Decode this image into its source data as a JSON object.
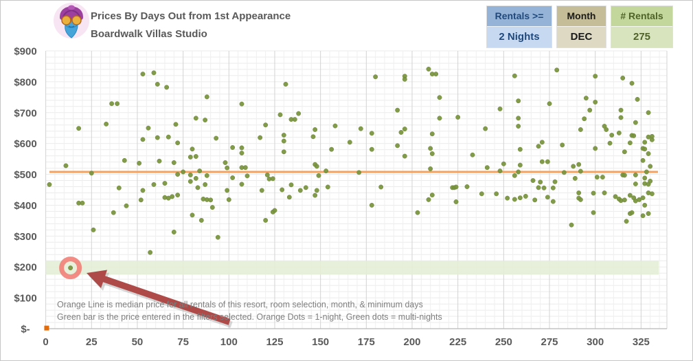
{
  "header": {
    "title_line1": "Prices By Days Out from 1st Appearance",
    "title_line2": "Boardwalk Villas Studio",
    "logo": "genie-avatar-icon"
  },
  "filters": [
    {
      "label": "Rentals >=",
      "value": "2 Nights",
      "header_bg": "#95b3d7",
      "value_bg": "#c6d9f1",
      "text_color": "#1f497d"
    },
    {
      "label": "Month",
      "value": "DEC",
      "header_bg": "#c4bd97",
      "value_bg": "#ddd9c3",
      "text_color": "#1a1a1a"
    },
    {
      "label": "# Rentals",
      "value": "275",
      "header_bg": "#c3d69b",
      "value_bg": "#d7e4bd",
      "text_color": "#4f6228"
    }
  ],
  "chart_data": {
    "type": "scatter",
    "title": "Prices By Days Out from 1st Appearance",
    "subtitle": "Boardwalk Villas Studio",
    "xlabel": "",
    "ylabel": "",
    "xlim": [
      0,
      340
    ],
    "ylim": [
      0,
      900
    ],
    "grid": "on",
    "x_ticks": [
      0,
      25,
      50,
      75,
      100,
      125,
      150,
      175,
      200,
      225,
      250,
      275,
      300,
      325
    ],
    "y_ticks": [
      {
        "label": "$-",
        "value": 0
      },
      {
        "label": "$100",
        "value": 100
      },
      {
        "label": "$200",
        "value": 200
      },
      {
        "label": "$300",
        "value": 300
      },
      {
        "label": "$400",
        "value": 400
      },
      {
        "label": "$500",
        "value": 500
      },
      {
        "label": "$600",
        "value": 600
      },
      {
        "label": "$700",
        "value": 700
      },
      {
        "label": "$800",
        "value": 800
      },
      {
        "label": "$900",
        "value": 900
      }
    ],
    "median_line": {
      "value": 508,
      "color": "#f5a15f",
      "meaning": "median price for all rentals of this resort, room selection, month, & minimum days"
    },
    "filter_band": {
      "from": 175,
      "to": 220,
      "color": "#e4eed6",
      "meaning": "price entered in the filters selected"
    },
    "highlight": {
      "x": 13.5,
      "y": 197,
      "ring_color": "#f2827a",
      "arrow_color": "#ae4b49"
    },
    "annotation_lines": [
      "Orange Line is median price for all rentals of this resort, room selection, month, & minimum days",
      "Green bar is the price entered in the filters selected. Orange Dots = 1-night, Green dots = multi-nights"
    ],
    "series": [
      {
        "name": "multi-night rentals",
        "marker": "circle",
        "color": "#77933c",
        "points": [
          [
            53,
            825
          ],
          [
            36,
            729
          ],
          [
            39,
            729
          ],
          [
            33,
            663
          ],
          [
            18,
            649
          ],
          [
            56,
            650
          ],
          [
            53,
            613
          ],
          [
            43,
            545
          ],
          [
            51,
            536
          ],
          [
            11,
            528
          ],
          [
            25,
            504
          ],
          [
            2,
            467
          ],
          [
            40,
            456
          ],
          [
            53,
            448
          ],
          [
            52,
            417
          ],
          [
            18,
            407
          ],
          [
            20,
            407
          ],
          [
            44,
            398
          ],
          [
            37,
            376
          ],
          [
            26,
            320
          ],
          [
            59,
            829
          ],
          [
            61,
            792
          ],
          [
            66,
            782
          ],
          [
            88,
            751
          ],
          [
            107,
            728
          ],
          [
            82,
            682
          ],
          [
            87,
            676
          ],
          [
            71,
            662
          ],
          [
            61,
            619
          ],
          [
            67,
            621
          ],
          [
            93,
            617
          ],
          [
            72,
            602
          ],
          [
            102,
            587
          ],
          [
            107,
            586
          ],
          [
            80,
            582
          ],
          [
            107,
            569
          ],
          [
            79,
            556
          ],
          [
            82,
            558
          ],
          [
            62,
            543
          ],
          [
            98,
            538
          ],
          [
            70,
            538
          ],
          [
            99,
            521
          ],
          [
            107,
            522
          ],
          [
            109,
            522
          ],
          [
            84,
            511
          ],
          [
            75,
            508
          ],
          [
            72,
            500
          ],
          [
            79,
            498
          ],
          [
            88,
            496
          ],
          [
            82,
            487
          ],
          [
            102,
            489
          ],
          [
            110,
            495
          ],
          [
            79,
            477
          ],
          [
            59,
            467
          ],
          [
            65,
            471
          ],
          [
            107,
            468
          ],
          [
            83,
            457
          ],
          [
            87,
            467
          ],
          [
            99,
            448
          ],
          [
            72,
            433
          ],
          [
            69,
            428
          ],
          [
            65,
            425
          ],
          [
            67,
            423
          ],
          [
            86,
            420
          ],
          [
            88,
            418
          ],
          [
            90,
            417
          ],
          [
            100,
            418
          ],
          [
            91,
            393
          ],
          [
            80,
            368
          ],
          [
            85,
            351
          ],
          [
            70,
            313
          ],
          [
            94,
            296
          ],
          [
            57,
            247
          ],
          [
            131,
            792
          ],
          [
            128,
            693
          ],
          [
            138,
            697
          ],
          [
            134,
            678
          ],
          [
            136,
            678
          ],
          [
            120,
            660
          ],
          [
            158,
            657
          ],
          [
            147,
            645
          ],
          [
            117,
            619
          ],
          [
            130,
            627
          ],
          [
            146,
            622
          ],
          [
            130,
            608
          ],
          [
            166,
            604
          ],
          [
            156,
            581
          ],
          [
            130,
            573
          ],
          [
            147,
            532
          ],
          [
            148,
            526
          ],
          [
            153,
            511
          ],
          [
            149,
            496
          ],
          [
            121,
            498
          ],
          [
            122,
            485
          ],
          [
            124,
            486
          ],
          [
            134,
            466
          ],
          [
            118,
            448
          ],
          [
            129,
            450
          ],
          [
            139,
            448
          ],
          [
            142,
            457
          ],
          [
            148,
            448
          ],
          [
            154,
            459
          ],
          [
            133,
            426
          ],
          [
            147,
            432
          ],
          [
            124,
            378
          ],
          [
            125,
            383
          ],
          [
            120,
            351
          ],
          [
            209,
            841
          ],
          [
            211,
            825
          ],
          [
            213,
            825
          ],
          [
            180,
            816
          ],
          [
            196,
            818
          ],
          [
            196,
            808
          ],
          [
            215,
            749
          ],
          [
            192,
            708
          ],
          [
            215,
            682
          ],
          [
            172,
            648
          ],
          [
            196,
            647
          ],
          [
            194,
            636
          ],
          [
            178,
            633
          ],
          [
            211,
            631
          ],
          [
            192,
            593
          ],
          [
            178,
            581
          ],
          [
            210,
            584
          ],
          [
            211,
            567
          ],
          [
            196,
            559
          ],
          [
            210,
            518
          ],
          [
            171,
            506
          ],
          [
            183,
            459
          ],
          [
            222,
            457
          ],
          [
            211,
            433
          ],
          [
            209,
            418
          ],
          [
            178,
            400
          ],
          [
            203,
            376
          ],
          [
            256,
            819
          ],
          [
            258,
            738
          ],
          [
            275,
            729
          ],
          [
            248,
            712
          ],
          [
            225,
            685
          ],
          [
            258,
            682
          ],
          [
            258,
            656
          ],
          [
            240,
            648
          ],
          [
            271,
            604
          ],
          [
            269,
            591
          ],
          [
            259,
            581
          ],
          [
            233,
            563
          ],
          [
            271,
            541
          ],
          [
            274,
            541
          ],
          [
            250,
            534
          ],
          [
            259,
            530
          ],
          [
            241,
            522
          ],
          [
            248,
            511
          ],
          [
            258,
            508
          ],
          [
            256,
            496
          ],
          [
            266,
            480
          ],
          [
            270,
            475
          ],
          [
            223,
            457
          ],
          [
            224,
            459
          ],
          [
            230,
            460
          ],
          [
            269,
            457
          ],
          [
            272,
            456
          ],
          [
            277,
            456
          ],
          [
            238,
            437
          ],
          [
            246,
            437
          ],
          [
            252,
            423
          ],
          [
            256,
            419
          ],
          [
            259,
            424
          ],
          [
            262,
            429
          ],
          [
            267,
            417
          ],
          [
            274,
            426
          ],
          [
            224,
            411
          ],
          [
            277,
            412
          ],
          [
            279,
            838
          ],
          [
            300,
            818
          ],
          [
            315,
            812
          ],
          [
            320,
            795
          ],
          [
            295,
            747
          ],
          [
            300,
            734
          ],
          [
            323,
            743
          ],
          [
            297,
            708
          ],
          [
            314,
            708
          ],
          [
            329,
            700
          ],
          [
            294,
            680
          ],
          [
            314,
            684
          ],
          [
            322,
            668
          ],
          [
            292,
            645
          ],
          [
            305,
            656
          ],
          [
            306,
            645
          ],
          [
            309,
            627
          ],
          [
            313,
            634
          ],
          [
            320,
            626
          ],
          [
            321,
            625
          ],
          [
            329,
            621
          ],
          [
            331,
            623
          ],
          [
            331,
            612
          ],
          [
            282,
            595
          ],
          [
            308,
            601
          ],
          [
            319,
            602
          ],
          [
            327,
            604
          ],
          [
            326,
            584
          ],
          [
            327,
            582
          ],
          [
            300,
            584
          ],
          [
            316,
            573
          ],
          [
            329,
            567
          ],
          [
            326,
            545
          ],
          [
            288,
            526
          ],
          [
            291,
            532
          ],
          [
            292,
            510
          ],
          [
            283,
            506
          ],
          [
            330,
            526
          ],
          [
            328,
            508
          ],
          [
            315,
            498
          ],
          [
            316,
            497
          ],
          [
            322,
            498
          ],
          [
            301,
            491
          ],
          [
            304,
            491
          ],
          [
            278,
            476
          ],
          [
            289,
            487
          ],
          [
            322,
            469
          ],
          [
            327,
            470
          ],
          [
            329,
            468
          ],
          [
            327,
            488
          ],
          [
            330,
            478
          ],
          [
            291,
            440
          ],
          [
            299,
            439
          ],
          [
            305,
            440
          ],
          [
            311,
            428
          ],
          [
            291,
            423
          ],
          [
            292,
            418
          ],
          [
            313,
            420
          ],
          [
            314,
            415
          ],
          [
            316,
            417
          ],
          [
            319,
            432
          ],
          [
            321,
            424
          ],
          [
            322,
            414
          ],
          [
            324,
            418
          ],
          [
            326,
            424
          ],
          [
            327,
            400
          ],
          [
            329,
            440
          ],
          [
            331,
            437
          ],
          [
            299,
            376
          ],
          [
            319,
            373
          ],
          [
            320,
            376
          ],
          [
            326,
            366
          ],
          [
            329,
            373
          ],
          [
            317,
            348
          ],
          [
            287,
            336
          ],
          [
            13.5,
            197
          ]
        ]
      },
      {
        "name": "1-night rentals",
        "marker": "square",
        "color": "#e26b0a",
        "points": [
          [
            0.5,
            2
          ]
        ]
      }
    ]
  }
}
